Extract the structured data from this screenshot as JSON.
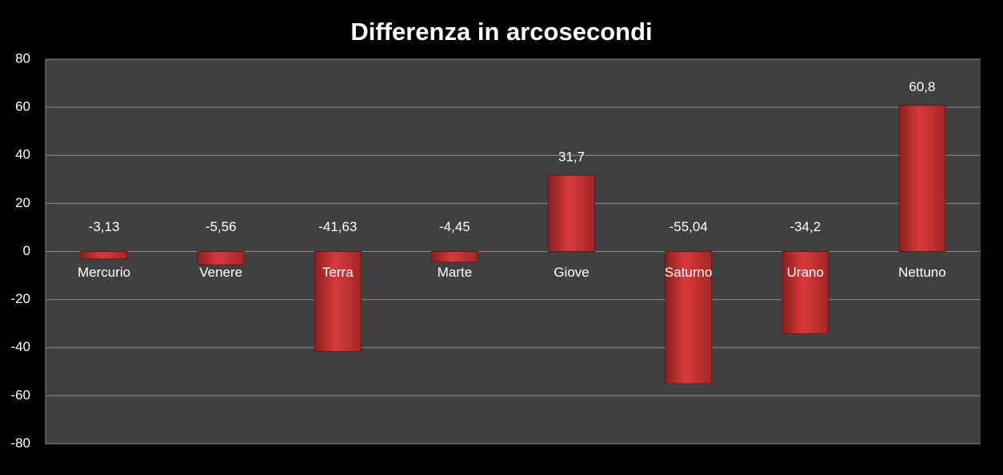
{
  "chart_data": {
    "type": "bar",
    "title": "Differenza in arcosecondi",
    "categories": [
      "Mercurio",
      "Venere",
      "Terra",
      "Marte",
      "Giove",
      "Saturno",
      "Urano",
      "Nettuno"
    ],
    "values": [
      -3.13,
      -5.56,
      -41.63,
      -4.45,
      31.7,
      -55.04,
      -34.2,
      60.8
    ],
    "value_labels": [
      "-3,13",
      "-5,56",
      "-41,63",
      "-4,45",
      "31,7",
      "-55,04",
      "-34,2",
      "60,8"
    ],
    "color": "#d93a3a",
    "ylim": [
      -80,
      80
    ],
    "yticks": [
      -80,
      -60,
      -40,
      -20,
      0,
      20,
      40,
      60,
      80
    ],
    "grid": true
  }
}
